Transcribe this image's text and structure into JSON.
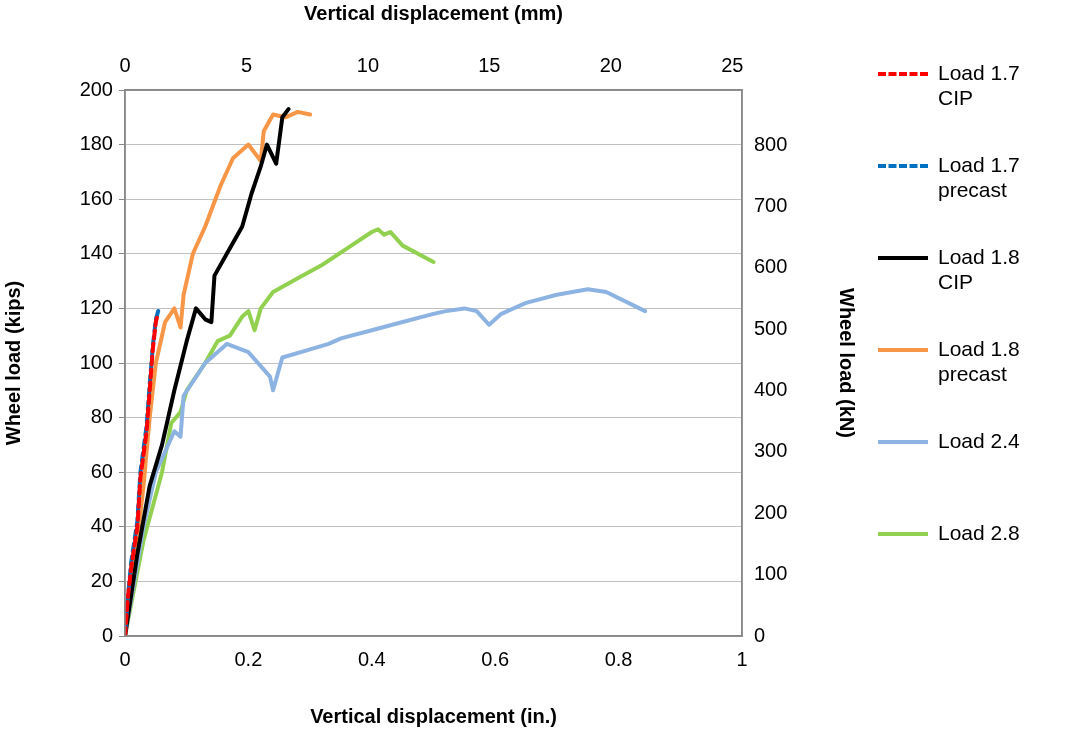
{
  "chart_data": {
    "type": "line",
    "xlabel": "Vertical displacement (in.)",
    "ylabel": "Wheel load (kips)",
    "x2label": "Vertical displacement (mm)",
    "y2label": "Wheel load (kN)",
    "xlim": [
      0,
      1
    ],
    "xticks": [
      0,
      0.2,
      0.4,
      0.6,
      0.8,
      1
    ],
    "ylim": [
      0,
      200
    ],
    "yticks": [
      0,
      20,
      40,
      60,
      80,
      100,
      120,
      140,
      160,
      180,
      200
    ],
    "x2lim": [
      0,
      25.4
    ],
    "x2ticks": [
      0,
      5,
      10,
      15,
      20,
      25
    ],
    "y2lim": [
      0,
      889.6
    ],
    "y2ticks": [
      0,
      100,
      200,
      300,
      400,
      500,
      600,
      700,
      800
    ],
    "grid": "y",
    "legend": "right",
    "marker": "none",
    "series": [
      {
        "name": "Load 1.7 CIP",
        "color": "#ff0000",
        "line_style": "dashed",
        "x": [
          0,
          0.005,
          0.01,
          0.02,
          0.025,
          0.035,
          0.04,
          0.045,
          0.05,
          0.052
        ],
        "values": [
          0,
          15,
          25,
          40,
          58,
          75,
          90,
          105,
          115,
          117
        ]
      },
      {
        "name": "Load 1.7 precast",
        "color": "#0070c0",
        "line_style": "dashed",
        "x": [
          0,
          0.005,
          0.01,
          0.02,
          0.025,
          0.035,
          0.04,
          0.045,
          0.05,
          0.055
        ],
        "values": [
          0,
          15,
          27,
          42,
          60,
          77,
          92,
          106,
          116,
          120
        ]
      },
      {
        "name": "Load 1.8 CIP",
        "color": "#000000",
        "line_style": "solid",
        "x": [
          0,
          0.02,
          0.04,
          0.06,
          0.08,
          0.1,
          0.115,
          0.13,
          0.14,
          0.145,
          0.165,
          0.19,
          0.205,
          0.22,
          0.23,
          0.245,
          0.255,
          0.265
        ],
        "values": [
          0,
          30,
          55,
          70,
          90,
          108,
          120,
          116,
          115,
          132,
          140,
          150,
          162,
          172,
          180,
          173,
          190,
          193
        ]
      },
      {
        "name": "Load 1.8 precast",
        "color": "#f79646",
        "line_style": "solid",
        "x": [
          0,
          0.02,
          0.03,
          0.04,
          0.05,
          0.065,
          0.08,
          0.09,
          0.095,
          0.11,
          0.13,
          0.155,
          0.175,
          0.2,
          0.22,
          0.225,
          0.24,
          0.26,
          0.28,
          0.3
        ],
        "values": [
          0,
          35,
          55,
          80,
          100,
          115,
          120,
          113,
          125,
          140,
          150,
          165,
          175,
          180,
          174,
          185,
          191,
          190,
          192,
          191
        ]
      },
      {
        "name": "Load 2.4",
        "color": "#8db3e2",
        "line_style": "solid",
        "x": [
          0,
          0.03,
          0.05,
          0.08,
          0.09,
          0.095,
          0.13,
          0.165,
          0.2,
          0.235,
          0.24,
          0.255,
          0.3,
          0.33,
          0.35,
          0.4,
          0.45,
          0.5,
          0.52,
          0.55,
          0.57,
          0.59,
          0.61,
          0.65,
          0.7,
          0.75,
          0.78,
          0.843
        ],
        "values": [
          0,
          40,
          60,
          75,
          73,
          88,
          100,
          107,
          104,
          95,
          90,
          102,
          105,
          107,
          109,
          112,
          115,
          118,
          119,
          120,
          119,
          114,
          118,
          122,
          125,
          127,
          126,
          119
        ]
      },
      {
        "name": "Load 2.8",
        "color": "#92d050",
        "line_style": "solid",
        "x": [
          0,
          0.03,
          0.06,
          0.075,
          0.09,
          0.1,
          0.13,
          0.15,
          0.17,
          0.19,
          0.2,
          0.21,
          0.22,
          0.24,
          0.28,
          0.32,
          0.36,
          0.4,
          0.41,
          0.42,
          0.43,
          0.45,
          0.5
        ],
        "values": [
          0,
          35,
          60,
          78,
          82,
          90,
          100,
          108,
          110,
          117,
          119,
          112,
          120,
          126,
          131,
          136,
          142,
          148,
          149,
          147,
          148,
          143,
          137
        ]
      }
    ]
  }
}
